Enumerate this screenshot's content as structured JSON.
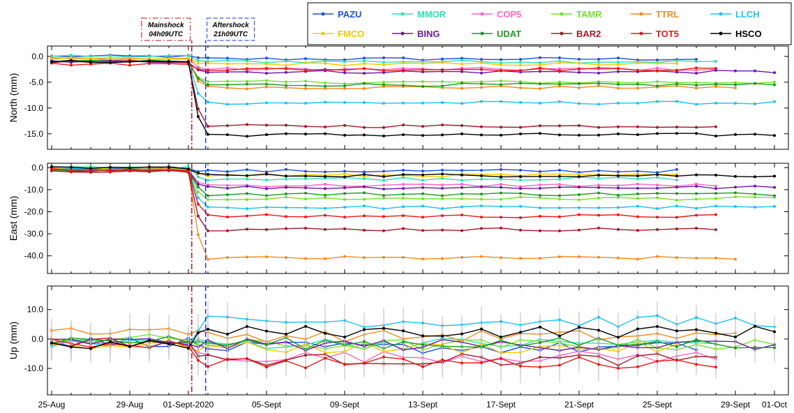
{
  "chart_data": {
    "type": "line",
    "x_dates": [
      "2020-08-25",
      "2020-08-26",
      "2020-08-27",
      "2020-08-28",
      "2020-08-29",
      "2020-08-30",
      "2020-08-31",
      "2020-09-01",
      "2020-09-02",
      "2020-09-03",
      "2020-09-04",
      "2020-09-05",
      "2020-09-06",
      "2020-09-07",
      "2020-09-08",
      "2020-09-09",
      "2020-09-10",
      "2020-09-11",
      "2020-09-12",
      "2020-09-13",
      "2020-09-14",
      "2020-09-15",
      "2020-09-16",
      "2020-09-17",
      "2020-09-18",
      "2020-09-19",
      "2020-09-20",
      "2020-09-21",
      "2020-09-22",
      "2020-09-23",
      "2020-09-24",
      "2020-09-25",
      "2020-09-26",
      "2020-09-27",
      "2020-09-28",
      "2020-09-29",
      "2020-09-30",
      "2020-10-01"
    ],
    "x_tick_labels": [
      "25-Aug",
      "29-Aug",
      "01-Sept-2020",
      "05-Sept",
      "09-Sept",
      "13-Sept",
      "17-Sept",
      "21-Sept",
      "25-Sept",
      "29-Sept",
      "01-Oct"
    ],
    "x_tick_dates": [
      "2020-08-25",
      "2020-08-29",
      "2020-09-01",
      "2020-09-05",
      "2020-09-09",
      "2020-09-13",
      "2020-09-17",
      "2020-09-21",
      "2020-09-25",
      "2020-09-29",
      "2020-10-01"
    ],
    "events": [
      {
        "title": "Mainshock",
        "subtitle": "04h09UTC",
        "color": "#b0102a",
        "dash": "dashdot",
        "date": "2020-09-01T04:09"
      },
      {
        "title": "Aftershock",
        "subtitle": "21h09UTC",
        "color": "#2233dd",
        "dash": "dash",
        "date": "2020-09-01T21:09"
      }
    ],
    "legend": [
      {
        "name": "PAZU",
        "color": "#1f4fe0"
      },
      {
        "name": "MMOR",
        "color": "#2ee0b0"
      },
      {
        "name": "COP5",
        "color": "#ff66c0"
      },
      {
        "name": "TAMR",
        "color": "#77e030"
      },
      {
        "name": "TTRL",
        "color": "#f08c20"
      },
      {
        "name": "LLCH",
        "color": "#20c0f0"
      },
      {
        "name": "FMCO",
        "color": "#f5c800"
      },
      {
        "name": "BING",
        "color": "#6a1aa0"
      },
      {
        "name": "UDAT",
        "color": "#1a9a20"
      },
      {
        "name": "BAR2",
        "color": "#a01a2a"
      },
      {
        "name": "TOT5",
        "color": "#e81818"
      },
      {
        "name": "HSCO",
        "color": "#000000"
      }
    ],
    "panels": [
      {
        "ylabel": "North (mm)",
        "ylim": [
          -18,
          2
        ],
        "yticks": [
          0,
          -5,
          -10,
          -15
        ],
        "ytick_labels": [
          "0.0",
          "-5.0",
          "-10.0",
          "-15.0"
        ],
        "series": [
          {
            "name": "PAZU",
            "pre": 0,
            "post": -0.5,
            "last": "2020-09-27"
          },
          {
            "name": "MMOR",
            "pre": 0,
            "post": -1.0,
            "last": "2020-09-28"
          },
          {
            "name": "COP5",
            "pre": -0.5,
            "post": -2.5,
            "last": "2020-09-28"
          },
          {
            "name": "TAMR",
            "pre": -1.0,
            "post": -5.0,
            "last": "2020-10-01"
          },
          {
            "name": "TTRL",
            "pre": -0.5,
            "post": -6.0,
            "last": "2020-09-29"
          },
          {
            "name": "LLCH",
            "pre": -1.0,
            "post": -9.0,
            "last": "2020-10-01"
          },
          {
            "name": "FMCO",
            "pre": -0.5,
            "post": -1.5,
            "last": "2020-09-26"
          },
          {
            "name": "BING",
            "pre": -1.0,
            "post": -3.0,
            "last": "2020-10-01"
          },
          {
            "name": "UDAT",
            "pre": -1.0,
            "post": -5.5,
            "last": "2020-10-01"
          },
          {
            "name": "BAR2",
            "pre": -1.0,
            "post": -13.5,
            "last": "2020-09-28"
          },
          {
            "name": "TOT5",
            "pre": -1.5,
            "post": -2.5,
            "last": "2020-09-28"
          },
          {
            "name": "HSCO",
            "pre": -1.0,
            "post": -15.2,
            "last": "2020-10-01"
          }
        ]
      },
      {
        "ylabel": "East (mm)",
        "ylim": [
          -48,
          2
        ],
        "yticks": [
          0,
          -10,
          -20,
          -30,
          -40
        ],
        "ytick_labels": [
          "0.0",
          "-10.0",
          "-20.0",
          "-30.0",
          "-40.0"
        ],
        "series": [
          {
            "name": "PAZU",
            "pre": 0,
            "post": -1.5,
            "last": "2020-09-26"
          },
          {
            "name": "MMOR",
            "pre": 0,
            "post": -5.0,
            "last": "2020-09-26"
          },
          {
            "name": "COP5",
            "pre": -1.0,
            "post": -8.0,
            "last": "2020-09-28"
          },
          {
            "name": "TAMR",
            "pre": -1.0,
            "post": -14.0,
            "last": "2020-10-01"
          },
          {
            "name": "TTRL",
            "pre": -1.0,
            "post": -41.0,
            "last": "2020-09-29"
          },
          {
            "name": "LLCH",
            "pre": -1.0,
            "post": -18.0,
            "last": "2020-10-01"
          },
          {
            "name": "FMCO",
            "pre": -0.5,
            "post": -3.5,
            "last": "2020-09-26"
          },
          {
            "name": "BING",
            "pre": -1.0,
            "post": -9.0,
            "last": "2020-10-01"
          },
          {
            "name": "UDAT",
            "pre": -1.0,
            "post": -12.0,
            "last": "2020-10-01"
          },
          {
            "name": "BAR2",
            "pre": -1.5,
            "post": -28.0,
            "last": "2020-09-28"
          },
          {
            "name": "TOT5",
            "pre": -1.0,
            "post": -22.0,
            "last": "2020-09-28"
          },
          {
            "name": "HSCO",
            "pre": 0,
            "post": -3.5,
            "last": "2020-10-01"
          }
        ]
      },
      {
        "ylabel": "Up (mm)",
        "ylim": [
          -19,
          18
        ],
        "yticks": [
          10,
          0,
          -10
        ],
        "ytick_labels": [
          "10.0",
          "0.0",
          "-10.0"
        ],
        "series": [
          {
            "name": "PAZU",
            "pre": -1.0,
            "post": -3.0,
            "last": "2020-09-27"
          },
          {
            "name": "MMOR",
            "pre": -1.0,
            "post": -1.5,
            "last": "2020-09-28"
          },
          {
            "name": "COP5",
            "pre": -2.0,
            "post": -6.0,
            "last": "2020-09-28"
          },
          {
            "name": "TAMR",
            "pre": 0,
            "post": -2.0,
            "last": "2020-10-01"
          },
          {
            "name": "TTRL",
            "pre": 3.0,
            "post": 1.0,
            "last": "2020-09-29"
          },
          {
            "name": "LLCH",
            "pre": -1.0,
            "post": 6.0,
            "last": "2020-10-01"
          },
          {
            "name": "FMCO",
            "pre": -2.0,
            "post": -3.0,
            "last": "2020-09-26"
          },
          {
            "name": "BING",
            "pre": -1.0,
            "post": -2.0,
            "last": "2020-10-01"
          },
          {
            "name": "UDAT",
            "pre": -0.5,
            "post": -1.5,
            "last": "2020-10-01"
          },
          {
            "name": "BAR2",
            "pre": -1.0,
            "post": -7.0,
            "last": "2020-09-28"
          },
          {
            "name": "TOT5",
            "pre": -1.5,
            "post": -8.0,
            "last": "2020-09-28"
          },
          {
            "name": "HSCO",
            "pre": -2.0,
            "post": 2.5,
            "last": "2020-10-01"
          }
        ]
      }
    ]
  }
}
